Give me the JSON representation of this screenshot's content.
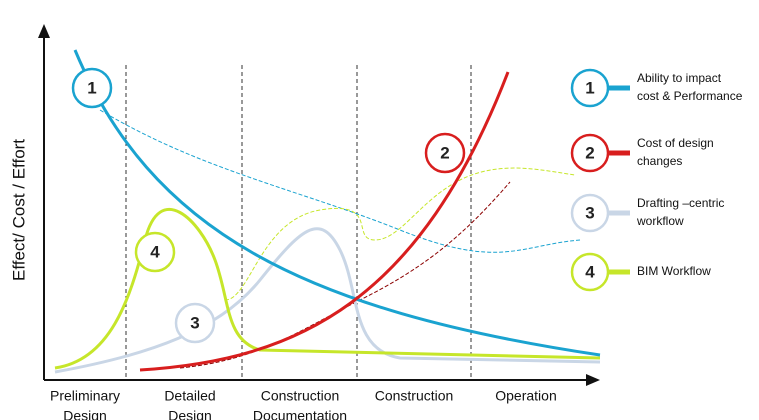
{
  "y_axis_label": "Effect/ Cost / Effort",
  "phases": [
    [
      "Preliminary",
      "Design"
    ],
    [
      "Detailed",
      "Design"
    ],
    [
      "Construction",
      "Documentation"
    ],
    [
      "Construction"
    ],
    [
      "Operation"
    ]
  ],
  "curve_markers": [
    "1",
    "2",
    "3",
    "4"
  ],
  "legend": [
    {
      "number": "1",
      "lines": [
        "Ability to impact",
        "cost & Performance"
      ],
      "color": "#1aa3d0"
    },
    {
      "number": "2",
      "lines": [
        "Cost of design",
        "changes"
      ],
      "color": "#d81e1e"
    },
    {
      "number": "3",
      "lines": [
        "Drafting –centric",
        "workflow"
      ],
      "color": "#c9d6e6"
    },
    {
      "number": "4",
      "lines": [
        "BIM Workflow"
      ],
      "color": "#c6e62a"
    }
  ]
}
